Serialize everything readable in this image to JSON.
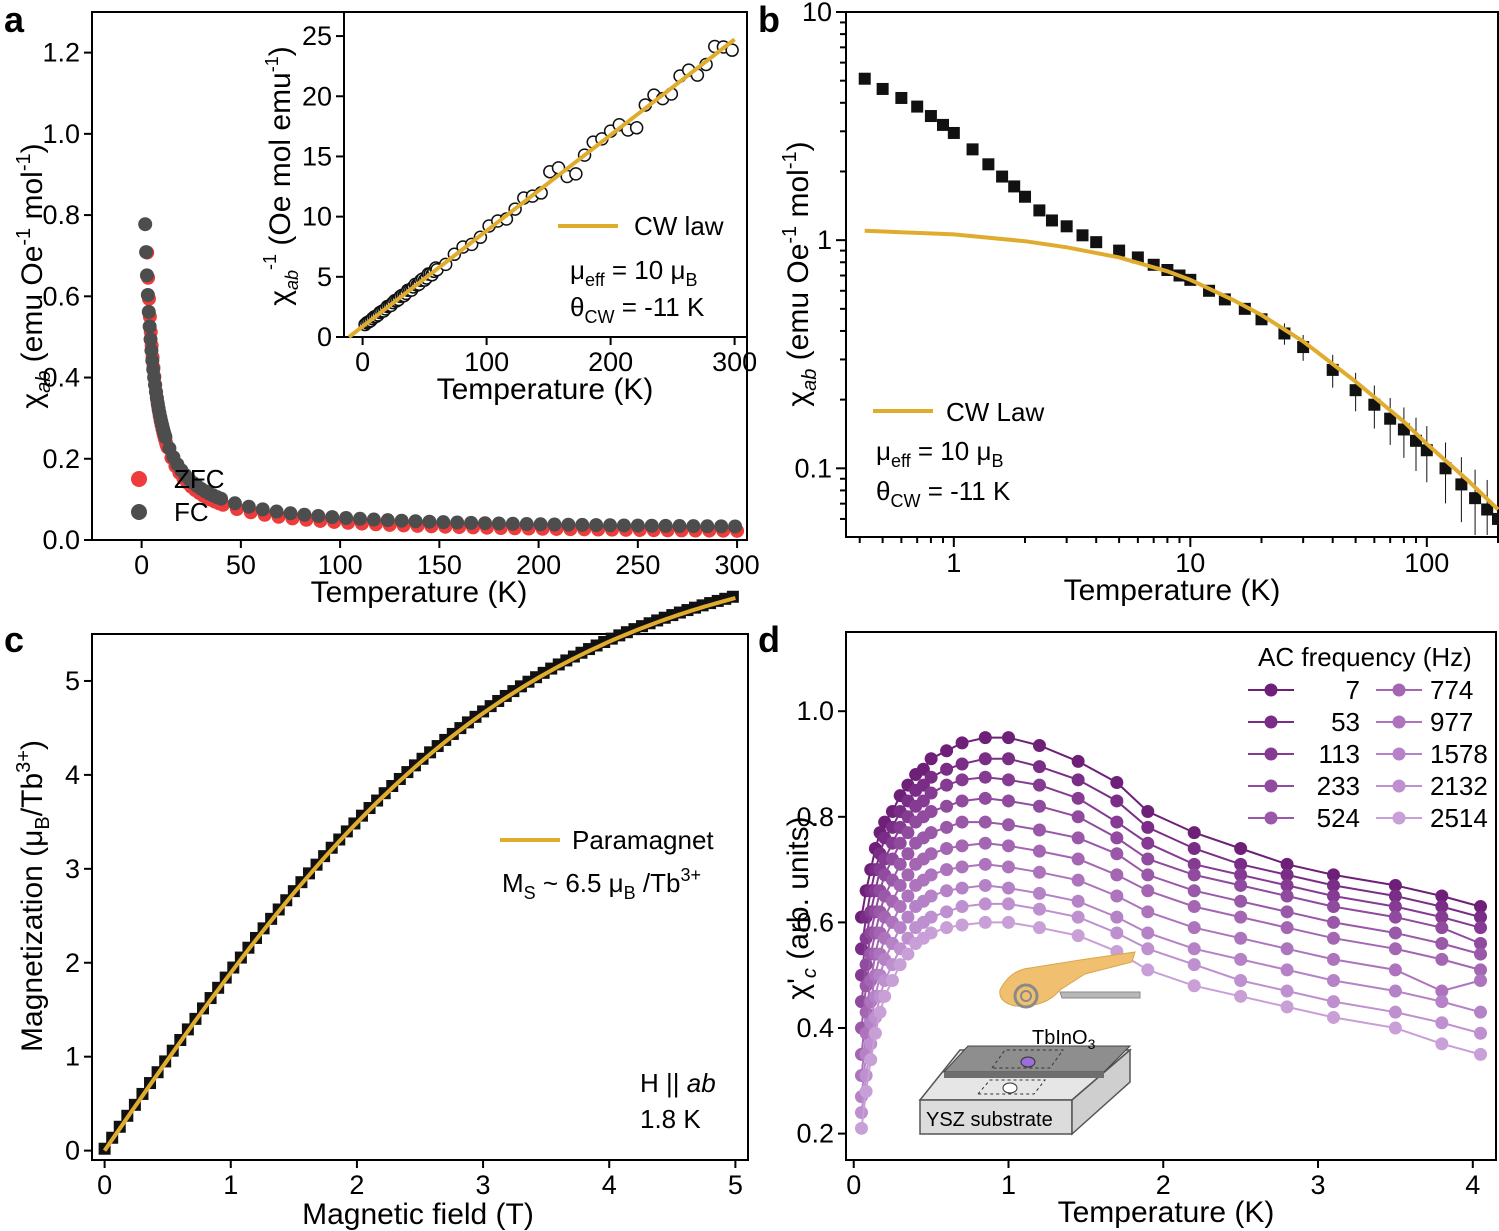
{
  "colors": {
    "zfc": "#ee3b3b",
    "fc": "#4d4d4d",
    "cw": "#e0ac2e",
    "data_black": "#111111",
    "ac_series": [
      "#6e1f78",
      "#7a2d86",
      "#863b93",
      "#904a9e",
      "#9a58a9",
      "#a466b3",
      "#ad74bd",
      "#b682c7",
      "#bf90cf",
      "#c99fd7"
    ]
  },
  "chart_data": [
    {
      "panel": "a",
      "type": "scatter",
      "xlabel": "Temperature (K)",
      "ylabel_main": "χ",
      "ylabel_sub": "ab",
      "ylabel_rest": " (emu Oe",
      "ylabel_sup1": "-1",
      "ylabel_rest2": " mol",
      "ylabel_sup2": "-1",
      "ylabel_end": ")",
      "xlim": [
        -25,
        305
      ],
      "ylim": [
        0,
        1.3
      ],
      "xticks": [
        "0",
        "50",
        "100",
        "150",
        "200",
        "250",
        "300"
      ],
      "yticks": [
        "0.0",
        "0.2",
        "0.4",
        "0.6",
        "0.8",
        "1.0",
        "1.2"
      ],
      "legend": [
        "ZFC",
        "FC"
      ],
      "series": [
        {
          "name": "ZFC",
          "model": "chi = 0.012 + 3.2/(T + 2.8)",
          "T_range": [
            1.8,
            300
          ]
        },
        {
          "name": "FC",
          "model": "chi = 0.022 + 3.4/(T + 2.7)",
          "T_range": [
            1.8,
            300
          ]
        }
      ],
      "inset": {
        "type": "scatter+line",
        "xlabel": "Temperature (K)",
        "ylabel": "χab⁻¹ (Oe mol emu⁻¹)",
        "ylabel_main": "χ",
        "ylabel_sub": "ab",
        "ylabel_sup": "-1",
        "ylabel_rest": " (Oe mol emu",
        "ylabel_sup2": "-1",
        "ylabel_end": ")",
        "xlim": [
          -15,
          310
        ],
        "ylim": [
          0,
          27
        ],
        "xticks": [
          "0",
          "100",
          "200",
          "300"
        ],
        "yticks": [
          "0",
          "5",
          "10",
          "15",
          "20",
          "25"
        ],
        "legend": "CW law",
        "cw_fit": {
          "slope": 0.0795,
          "theta": -11
        },
        "annot1_pre": "μ",
        "annot1_sub": "eff",
        "annot1_post": " = 10 μ",
        "annot1_sub2": "B",
        "annot2_pre": "θ",
        "annot2_sub": "CW",
        "annot2_post": " = -11 K"
      }
    },
    {
      "panel": "b",
      "type": "scatter+line",
      "xscale": "log",
      "yscale": "log",
      "xlabel": "Temperature (K)",
      "ylabel_main": "χ",
      "ylabel_sub": "ab",
      "ylabel_rest": " (emu Oe",
      "ylabel_sup1": "-1",
      "ylabel_rest2": " mol",
      "ylabel_sup2": "-1",
      "ylabel_end": ")",
      "xlim": [
        0.35,
        200
      ],
      "ylim": [
        0.05,
        10
      ],
      "xticks": [
        "1",
        "10",
        "100"
      ],
      "yticks": [
        "0.1",
        "1",
        "10"
      ],
      "legend": "CW Law",
      "annot1_pre": "μ",
      "annot1_sub": "eff",
      "annot1_post": " = 10 μ",
      "annot1_sub2": "B",
      "annot2_pre": "θ",
      "annot2_sub": "CW",
      "annot2_post": " = -11 K",
      "data_points": [
        [
          0.42,
          5.1
        ],
        [
          0.5,
          4.6
        ],
        [
          0.6,
          4.2
        ],
        [
          0.7,
          3.85
        ],
        [
          0.8,
          3.5
        ],
        [
          0.9,
          3.2
        ],
        [
          1.0,
          2.95
        ],
        [
          1.2,
          2.5
        ],
        [
          1.4,
          2.15
        ],
        [
          1.6,
          1.9
        ],
        [
          1.8,
          1.72
        ],
        [
          2.0,
          1.55
        ],
        [
          2.3,
          1.35
        ],
        [
          2.6,
          1.22
        ],
        [
          3.0,
          1.15
        ],
        [
          3.5,
          1.05
        ],
        [
          4.0,
          0.98
        ],
        [
          5.0,
          0.9
        ],
        [
          6.0,
          0.84
        ],
        [
          7.0,
          0.78
        ],
        [
          8.0,
          0.74
        ],
        [
          9.0,
          0.7
        ],
        [
          10,
          0.67
        ],
        [
          12,
          0.6
        ],
        [
          14,
          0.55
        ],
        [
          17,
          0.5
        ],
        [
          20,
          0.45
        ],
        [
          25,
          0.39
        ],
        [
          30,
          0.34
        ],
        [
          40,
          0.27
        ],
        [
          50,
          0.22
        ],
        [
          60,
          0.19
        ],
        [
          70,
          0.165
        ],
        [
          80,
          0.148
        ],
        [
          90,
          0.132
        ],
        [
          100,
          0.12
        ],
        [
          120,
          0.1
        ],
        [
          140,
          0.085
        ],
        [
          160,
          0.074
        ],
        [
          180,
          0.066
        ],
        [
          200,
          0.06
        ]
      ],
      "cw_curve": [
        [
          0.42,
          1.1
        ],
        [
          1,
          1.06
        ],
        [
          2,
          0.99
        ],
        [
          3,
          0.93
        ],
        [
          5,
          0.84
        ],
        [
          8,
          0.73
        ],
        [
          10,
          0.67
        ],
        [
          15,
          0.55
        ],
        [
          20,
          0.47
        ],
        [
          30,
          0.36
        ],
        [
          50,
          0.24
        ],
        [
          80,
          0.16
        ],
        [
          100,
          0.128
        ],
        [
          150,
          0.088
        ],
        [
          200,
          0.066
        ]
      ]
    },
    {
      "panel": "c",
      "type": "scatter+line",
      "xlabel": "Magnetic field (T)",
      "ylabel_pre": "Magnetization (μ",
      "ylabel_sub": "B",
      "ylabel_mid": "/Tb",
      "ylabel_sup": "3+",
      "ylabel_end": ")",
      "xlim": [
        -0.1,
        5.1
      ],
      "ylim": [
        -0.1,
        5.5
      ],
      "xticks": [
        "0",
        "1",
        "2",
        "3",
        "4",
        "5"
      ],
      "yticks": [
        "0",
        "1",
        "2",
        "3",
        "4",
        "5"
      ],
      "legend": "Paramagnet",
      "ms_pre": "M",
      "ms_sub": "S",
      "ms_mid": " ~ 6.5 μ",
      "ms_sub2": "B",
      "ms_mid2": " /Tb",
      "ms_sup": "3+",
      "cond1_pre": "H || ",
      "cond1_it": "ab",
      "cond2": "1.8 K",
      "model": "M = 6.5 * tanh(0.3 * H)",
      "field_range": [
        0.0,
        5.0
      ]
    },
    {
      "panel": "d",
      "type": "line",
      "xlabel": "Temperature (K)",
      "ylabel_main": "χ'",
      "ylabel_sub": "c",
      "ylabel_rest": " (arb. units)",
      "xlim": [
        -0.05,
        4.15
      ],
      "ylim": [
        0.15,
        1.15
      ],
      "xticks": [
        "0",
        "1",
        "2",
        "3",
        "4"
      ],
      "yticks": [
        "0.2",
        "0.4",
        "0.6",
        "0.8",
        "1.0"
      ],
      "legend_title": "AC frequency (Hz)",
      "x": [
        0.05,
        0.08,
        0.11,
        0.14,
        0.17,
        0.2,
        0.25,
        0.3,
        0.35,
        0.4,
        0.45,
        0.5,
        0.6,
        0.7,
        0.85,
        1.0,
        1.2,
        1.45,
        1.7,
        1.9,
        2.2,
        2.5,
        2.8,
        3.1,
        3.5,
        3.8,
        4.05
      ],
      "series": [
        {
          "name": "7",
          "values": [
            0.61,
            0.66,
            0.7,
            0.74,
            0.77,
            0.79,
            0.81,
            0.84,
            0.86,
            0.88,
            0.89,
            0.91,
            0.925,
            0.94,
            0.95,
            0.95,
            0.935,
            0.905,
            0.865,
            0.81,
            0.77,
            0.74,
            0.71,
            0.69,
            0.67,
            0.65,
            0.63
          ]
        },
        {
          "name": "53",
          "values": [
            0.55,
            0.61,
            0.66,
            0.7,
            0.73,
            0.76,
            0.78,
            0.81,
            0.83,
            0.85,
            0.86,
            0.875,
            0.89,
            0.9,
            0.91,
            0.91,
            0.895,
            0.87,
            0.83,
            0.78,
            0.74,
            0.71,
            0.69,
            0.67,
            0.65,
            0.63,
            0.61
          ]
        },
        {
          "name": "113",
          "values": [
            0.5,
            0.57,
            0.62,
            0.66,
            0.7,
            0.72,
            0.75,
            0.78,
            0.8,
            0.82,
            0.83,
            0.845,
            0.86,
            0.87,
            0.875,
            0.87,
            0.86,
            0.835,
            0.79,
            0.75,
            0.71,
            0.69,
            0.67,
            0.65,
            0.63,
            0.61,
            0.59
          ]
        },
        {
          "name": "233",
          "values": [
            0.45,
            0.52,
            0.58,
            0.62,
            0.66,
            0.69,
            0.72,
            0.75,
            0.77,
            0.79,
            0.8,
            0.81,
            0.82,
            0.83,
            0.835,
            0.83,
            0.82,
            0.8,
            0.76,
            0.72,
            0.69,
            0.67,
            0.65,
            0.63,
            0.61,
            0.59,
            0.56
          ]
        },
        {
          "name": "524",
          "values": [
            0.4,
            0.48,
            0.54,
            0.58,
            0.62,
            0.65,
            0.68,
            0.71,
            0.73,
            0.75,
            0.76,
            0.77,
            0.78,
            0.79,
            0.79,
            0.785,
            0.775,
            0.76,
            0.73,
            0.69,
            0.66,
            0.64,
            0.62,
            0.6,
            0.58,
            0.56,
            0.54
          ]
        },
        {
          "name": "774",
          "values": [
            0.35,
            0.43,
            0.49,
            0.54,
            0.58,
            0.61,
            0.64,
            0.67,
            0.69,
            0.71,
            0.72,
            0.73,
            0.74,
            0.745,
            0.75,
            0.745,
            0.735,
            0.72,
            0.69,
            0.66,
            0.63,
            0.61,
            0.59,
            0.57,
            0.55,
            0.53,
            0.51
          ]
        },
        {
          "name": "977",
          "values": [
            0.31,
            0.39,
            0.45,
            0.5,
            0.54,
            0.57,
            0.6,
            0.63,
            0.65,
            0.67,
            0.68,
            0.69,
            0.7,
            0.705,
            0.71,
            0.705,
            0.695,
            0.68,
            0.65,
            0.62,
            0.59,
            0.57,
            0.55,
            0.53,
            0.51,
            0.47,
            0.49
          ]
        },
        {
          "name": "1578",
          "values": [
            0.27,
            0.35,
            0.41,
            0.46,
            0.5,
            0.53,
            0.56,
            0.59,
            0.61,
            0.63,
            0.64,
            0.65,
            0.66,
            0.665,
            0.67,
            0.665,
            0.655,
            0.64,
            0.61,
            0.58,
            0.55,
            0.53,
            0.51,
            0.49,
            0.47,
            0.45,
            0.43
          ]
        },
        {
          "name": "2132",
          "values": [
            0.24,
            0.31,
            0.37,
            0.42,
            0.46,
            0.49,
            0.52,
            0.55,
            0.57,
            0.59,
            0.6,
            0.61,
            0.62,
            0.63,
            0.635,
            0.635,
            0.625,
            0.61,
            0.58,
            0.55,
            0.52,
            0.49,
            0.47,
            0.45,
            0.43,
            0.41,
            0.39
          ]
        },
        {
          "name": "2514",
          "values": [
            0.21,
            0.28,
            0.34,
            0.39,
            0.43,
            0.46,
            0.49,
            0.52,
            0.54,
            0.56,
            0.57,
            0.58,
            0.59,
            0.595,
            0.6,
            0.6,
            0.59,
            0.575,
            0.545,
            0.51,
            0.48,
            0.46,
            0.44,
            0.42,
            0.4,
            0.37,
            0.35
          ]
        }
      ],
      "inset_labels": {
        "film": "TbInO",
        "film_sub": "3",
        "substrate": "YSZ substrate"
      }
    }
  ],
  "panel_letters": [
    "a",
    "b",
    "c",
    "d"
  ]
}
